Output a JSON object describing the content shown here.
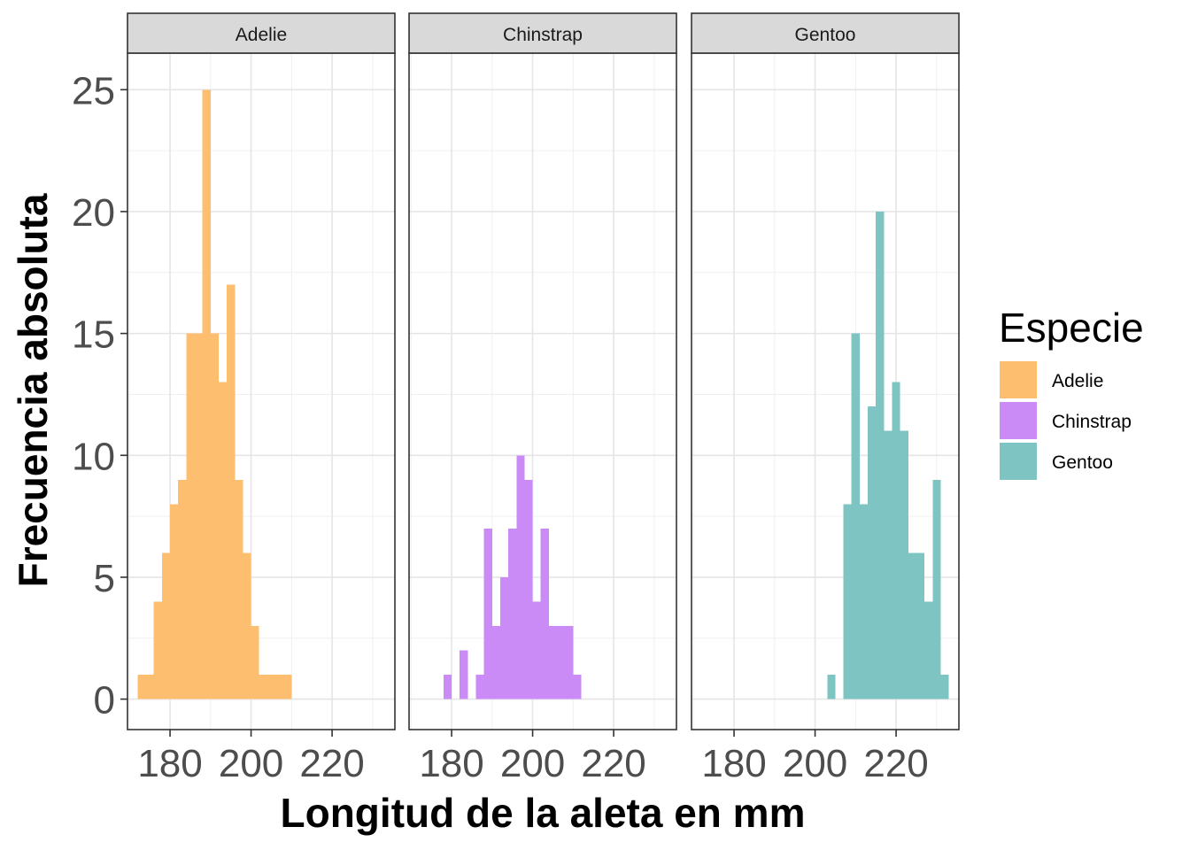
{
  "chart_data": {
    "type": "bar",
    "subtype": "faceted-histogram",
    "xlabel": "Longitud de la aleta en mm",
    "ylabel": "Frecuencia absoluta",
    "xlim": [
      169.5,
      235.5
    ],
    "ylim": [
      -1.25,
      26.5
    ],
    "x_ticks": [
      180,
      200,
      220
    ],
    "y_ticks": [
      0,
      5,
      10,
      15,
      20,
      25
    ],
    "grid": true,
    "bin_width": 2,
    "legend": {
      "title": "Especie",
      "position": "right",
      "entries": [
        "Adelie",
        "Chinstrap",
        "Gentoo"
      ]
    },
    "facets": [
      {
        "name": "Adelie",
        "color": "#FDBF6F",
        "bin_starts": [
          172,
          174,
          176,
          178,
          180,
          182,
          184,
          186,
          188,
          190,
          192,
          194,
          196,
          198,
          200,
          202,
          204,
          206,
          208
        ],
        "counts": [
          1,
          1,
          4,
          6,
          8,
          9,
          15,
          15,
          25,
          15,
          13,
          17,
          9,
          6,
          3,
          1,
          1,
          1,
          1
        ]
      },
      {
        "name": "Chinstrap",
        "color": "#CA8BF6",
        "bin_starts": [
          178,
          182,
          186,
          188,
          190,
          192,
          194,
          196,
          198,
          200,
          202,
          204,
          206,
          208,
          210
        ],
        "counts": [
          1,
          2,
          1,
          7,
          3,
          5,
          7,
          10,
          9,
          4,
          7,
          3,
          3,
          3,
          1
        ]
      },
      {
        "name": "Gentoo",
        "color": "#7EC4C3",
        "bin_starts": [
          203,
          207,
          209,
          211,
          213,
          215,
          217,
          219,
          221,
          223,
          225,
          227,
          229,
          231
        ],
        "counts": [
          1,
          8,
          15,
          8,
          12,
          20,
          11,
          13,
          11,
          6,
          6,
          4,
          9,
          1
        ]
      }
    ]
  }
}
